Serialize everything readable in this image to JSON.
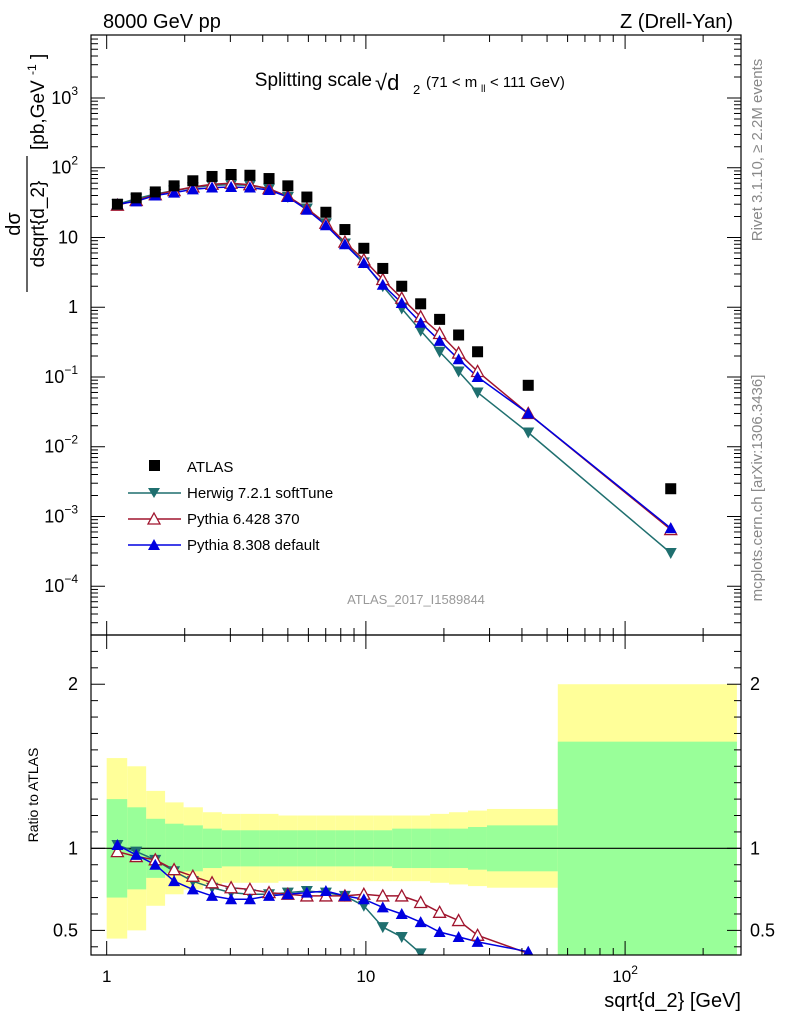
{
  "header": {
    "left": "8000 GeV pp",
    "right": "Z (Drell-Yan)",
    "plot_title": "Splitting scale",
    "plot_title_sym": "√d",
    "plot_title_sub": "2",
    "plot_title_cut": "(71 < m",
    "plot_title_cut_sub": "ll",
    "plot_title_cut_end": "< 111 GeV)"
  },
  "side": {
    "rivet": "Rivet 3.1.10, ≥ 2.2M events",
    "mcplots": "mcplots.cern.ch [arXiv:1306.3436]"
  },
  "watermark": "ATLAS_2017_I1589844",
  "colors": {
    "atlas": "#000000",
    "herwig": "#1f6f6f",
    "pythia6": "#a0152e",
    "pythia8": "#0000e0",
    "band_inner": "#99ff99",
    "band_outer": "#ffff99"
  },
  "chart_data": [
    {
      "type": "scatter",
      "panel": "main",
      "ylabel_num": "dσ",
      "ylabel_den": "dsqrt{d_2}",
      "ylabel_unit": "[pb,GeV",
      "ylabel_unit_sup": "-1",
      "ylabel_unit_end": "]",
      "xscale": "log",
      "yscale": "log",
      "xlim": [
        0.87,
        280
      ],
      "ylim": [
        2e-05,
        8000
      ],
      "yticks": [
        {
          "v": 0.0001,
          "base": "10",
          "exp": "−4"
        },
        {
          "v": 0.001,
          "base": "10",
          "exp": "−3"
        },
        {
          "v": 0.01,
          "base": "10",
          "exp": "−2"
        },
        {
          "v": 0.1,
          "base": "10",
          "exp": "−1"
        },
        {
          "v": 1,
          "base": "1",
          "exp": ""
        },
        {
          "v": 10,
          "base": "10",
          "exp": ""
        },
        {
          "v": 100,
          "base": "10",
          "exp": "2"
        },
        {
          "v": 1000,
          "base": "10",
          "exp": "3"
        }
      ],
      "legend_position": "lower-left",
      "x": [
        1.1,
        1.3,
        1.54,
        1.82,
        2.15,
        2.55,
        3.02,
        3.57,
        4.23,
        5.0,
        5.92,
        7.01,
        8.3,
        9.82,
        11.62,
        13.75,
        16.27,
        19.25,
        22.79,
        26.97,
        42.3,
        150.0
      ],
      "series": [
        {
          "name": "ATLAS",
          "marker": "square",
          "values": [
            30,
            37,
            45,
            55,
            65,
            75,
            80,
            78,
            70,
            55,
            38,
            23,
            13,
            7.0,
            3.6,
            2.0,
            1.12,
            0.67,
            0.4,
            0.23,
            0.076,
            0.0025
          ]
        },
        {
          "name": "Herwig 7.2.1 softTune",
          "marker": "triangle-down",
          "values": [
            30,
            36,
            42,
            47,
            52,
            56,
            57,
            56,
            50,
            38,
            26,
            16,
            8.2,
            4.4,
            2.0,
            0.96,
            0.46,
            0.23,
            0.12,
            0.06,
            0.016,
            0.0003
          ]
        },
        {
          "name": "Pythia 6.428 370",
          "marker": "triangle-up-open",
          "values": [
            29,
            34,
            41,
            47,
            53,
            58,
            60,
            57,
            50,
            39,
            26,
            16,
            8.6,
            4.8,
            2.5,
            1.35,
            0.73,
            0.42,
            0.22,
            0.12,
            0.03,
            0.00065
          ]
        },
        {
          "name": "Pythia 8.308 default",
          "marker": "triangle-up",
          "values": [
            30,
            33,
            40,
            44,
            49,
            52,
            53,
            52,
            48,
            38,
            25,
            15,
            8.0,
            4.3,
            2.1,
            1.15,
            0.6,
            0.33,
            0.18,
            0.1,
            0.03,
            0.00068
          ]
        }
      ]
    },
    {
      "type": "line",
      "panel": "ratio",
      "ylabel": "Ratio to ATLAS",
      "xlabel": "sqrt{d_2} [GeV]",
      "xscale": "log",
      "xlim": [
        0.87,
        280
      ],
      "ylim": [
        0.35,
        2.3
      ],
      "yticks": [
        0.5,
        1,
        2
      ],
      "xticks": [
        {
          "v": 1,
          "label": "1"
        },
        {
          "v": 10,
          "label": "10"
        },
        {
          "v": 100,
          "label": "10",
          "exp": "2"
        }
      ],
      "x": [
        1.1,
        1.3,
        1.54,
        1.82,
        2.15,
        2.55,
        3.02,
        3.57,
        4.23,
        5.0,
        5.92,
        7.01,
        8.3,
        9.82,
        11.62,
        13.75,
        16.27,
        19.25,
        22.79,
        26.97,
        42.3
      ],
      "bands": {
        "edges": [
          1.0,
          1.2,
          1.42,
          1.68,
          1.98,
          2.35,
          2.78,
          3.29,
          3.89,
          4.6,
          5.44,
          6.44,
          7.62,
          9.02,
          10.67,
          12.63,
          14.95,
          17.69,
          20.93,
          24.77,
          29.31,
          55.0,
          270.0
        ],
        "outer": [
          0.55,
          0.5,
          0.35,
          0.28,
          0.25,
          0.22,
          0.21,
          0.21,
          0.21,
          0.2,
          0.2,
          0.2,
          0.2,
          0.2,
          0.2,
          0.2,
          0.2,
          0.21,
          0.22,
          0.23,
          0.24,
          1.0
        ],
        "inner": [
          0.3,
          0.25,
          0.18,
          0.15,
          0.14,
          0.12,
          0.11,
          0.11,
          0.11,
          0.11,
          0.11,
          0.11,
          0.11,
          0.11,
          0.11,
          0.12,
          0.12,
          0.12,
          0.12,
          0.13,
          0.14,
          0.65
        ]
      },
      "series": [
        {
          "name": "Herwig 7.2.1 softTune",
          "marker": "triangle-down",
          "values": [
            1.02,
            0.98,
            0.93,
            0.86,
            0.8,
            0.76,
            0.73,
            0.72,
            0.72,
            0.73,
            0.74,
            0.73,
            0.71,
            0.65,
            0.52,
            0.46,
            0.36,
            null,
            null,
            null,
            null
          ]
        },
        {
          "name": "Pythia 6.428 370",
          "marker": "triangle-up-open",
          "values": [
            0.98,
            0.95,
            0.93,
            0.87,
            0.83,
            0.79,
            0.76,
            0.75,
            0.73,
            0.72,
            0.71,
            0.71,
            0.71,
            0.72,
            0.71,
            0.71,
            0.67,
            0.61,
            0.56,
            0.47,
            0.36
          ]
        },
        {
          "name": "Pythia 8.308 default",
          "marker": "triangle-up",
          "values": [
            1.02,
            0.96,
            0.9,
            0.8,
            0.75,
            0.71,
            0.69,
            0.69,
            0.71,
            0.72,
            0.73,
            0.74,
            0.71,
            0.69,
            0.64,
            0.6,
            0.55,
            0.49,
            0.46,
            0.43,
            0.37
          ]
        }
      ]
    }
  ]
}
